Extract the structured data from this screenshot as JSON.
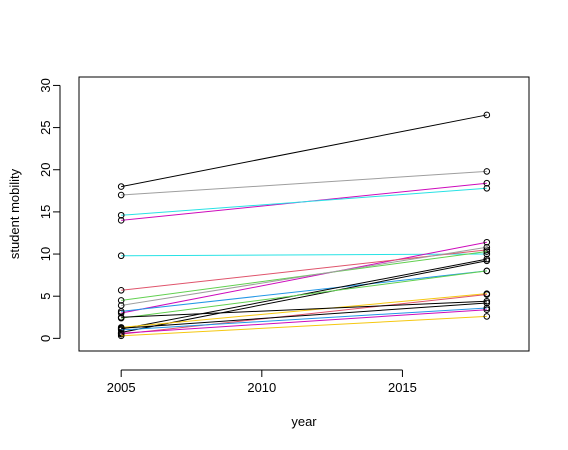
{
  "chart_data": {
    "type": "line",
    "title": "",
    "xlabel": "year",
    "ylabel": "student mobility",
    "xlim": [
      2003.5,
      2019.5
    ],
    "ylim": [
      -1.5,
      31
    ],
    "xticks": [
      2005,
      2010,
      2015
    ],
    "yticks": [
      0,
      5,
      10,
      15,
      20,
      25,
      30
    ],
    "grid": false,
    "legend": "none",
    "x": [
      2005,
      2018
    ],
    "series": [
      {
        "color": "#000000",
        "values": [
          18.0,
          26.5
        ]
      },
      {
        "color": "#9E9E9E",
        "values": [
          17.0,
          19.8
        ]
      },
      {
        "color": "#CD0BBC",
        "values": [
          14.0,
          18.4
        ]
      },
      {
        "color": "#28E2E5",
        "values": [
          14.6,
          17.8
        ]
      },
      {
        "color": "#28E2E5",
        "values": [
          9.8,
          10.0
        ]
      },
      {
        "color": "#CD0BBC",
        "values": [
          3.0,
          11.4
        ]
      },
      {
        "color": "#DF536B",
        "values": [
          5.7,
          10.5
        ]
      },
      {
        "color": "#61D04F",
        "values": [
          4.5,
          10.3
        ]
      },
      {
        "color": "#9E9E9E",
        "values": [
          3.9,
          10.8
        ]
      },
      {
        "color": "#2297E6",
        "values": [
          3.2,
          8.0
        ]
      },
      {
        "color": "#000000",
        "values": [
          1.1,
          9.4
        ]
      },
      {
        "color": "#000000",
        "values": [
          0.7,
          9.2
        ]
      },
      {
        "color": "#61D04F",
        "values": [
          2.4,
          8.0
        ]
      },
      {
        "color": "#F5C710",
        "values": [
          1.3,
          5.3
        ]
      },
      {
        "color": "#DF536B",
        "values": [
          0.5,
          5.2
        ]
      },
      {
        "color": "#000000",
        "values": [
          2.5,
          4.4
        ]
      },
      {
        "color": "#000000",
        "values": [
          1.2,
          4.2
        ]
      },
      {
        "color": "#2297E6",
        "values": [
          1.0,
          3.6
        ]
      },
      {
        "color": "#CD0BBC",
        "values": [
          0.6,
          3.4
        ]
      },
      {
        "color": "#F5C710",
        "values": [
          0.3,
          2.6
        ]
      }
    ]
  }
}
